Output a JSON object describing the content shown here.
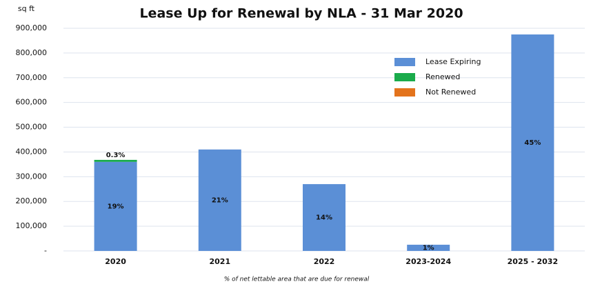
{
  "chart_data": {
    "type": "stacked_bar",
    "title": "Lease Up for Renewal by NLA - 31 Mar 2020",
    "y_label": "sq ft",
    "footnote": "% of net lettable area that are due for renewal",
    "categories": [
      "2020",
      "2021",
      "2022",
      "2023-2024",
      "2025 - 2032"
    ],
    "series": [
      {
        "name": "Lease Expiring",
        "color": "#5b8fd6",
        "values": [
          360000,
          410000,
          270000,
          25000,
          875000
        ],
        "labels": [
          "19%",
          "21%",
          "14%",
          "1%",
          "45%"
        ]
      },
      {
        "name": "Renewed",
        "color": "#1aab4b",
        "values": [
          8000,
          0,
          0,
          0,
          0
        ],
        "labels": [
          "0.3%",
          null,
          null,
          null,
          null
        ]
      },
      {
        "name": "Not Renewed",
        "color": "#e3731c",
        "values": [
          0,
          0,
          0,
          0,
          0
        ]
      }
    ],
    "ylim": [
      0,
      900000
    ],
    "yticks": [
      {
        "value": 0,
        "label": "-"
      },
      {
        "value": 100000,
        "label": "100,000"
      },
      {
        "value": 200000,
        "label": "200,000"
      },
      {
        "value": 300000,
        "label": "300,000"
      },
      {
        "value": 400000,
        "label": "400,000"
      },
      {
        "value": 500000,
        "label": "500,000"
      },
      {
        "value": 600000,
        "label": "600,000"
      },
      {
        "value": 700000,
        "label": "700,000"
      },
      {
        "value": 800000,
        "label": "800,000"
      },
      {
        "value": 900000,
        "label": "900,000"
      }
    ],
    "grid": true,
    "legend": "upper right"
  }
}
